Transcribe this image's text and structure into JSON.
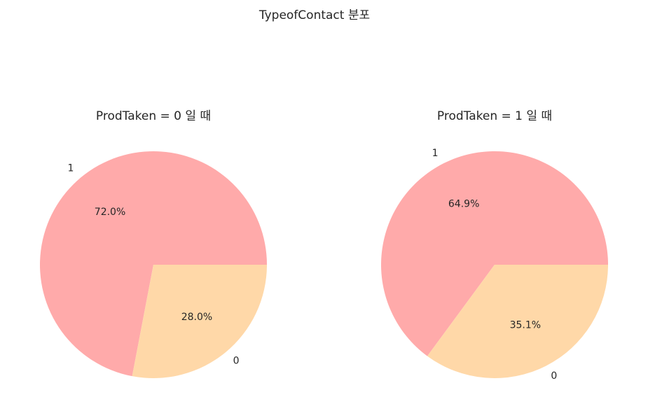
{
  "figure": {
    "suptitle": "TypeofContact 분포"
  },
  "chart_data": [
    {
      "type": "pie",
      "title": "ProdTaken = 0 일 때",
      "labels": [
        "1",
        "0"
      ],
      "values": [
        72.0,
        28.0
      ],
      "percent_labels": [
        "72.0%",
        "28.0%"
      ],
      "colors": [
        "#ffaaaa",
        "#ffd8a8"
      ],
      "start_angle_deg": 0,
      "direction": "counterclockwise",
      "legend": "none"
    },
    {
      "type": "pie",
      "title": "ProdTaken = 1 일 때",
      "labels": [
        "1",
        "0"
      ],
      "values": [
        64.9,
        35.1
      ],
      "percent_labels": [
        "64.9%",
        "35.1%"
      ],
      "colors": [
        "#ffaaaa",
        "#ffd8a8"
      ],
      "start_angle_deg": 0,
      "direction": "counterclockwise",
      "legend": "none"
    }
  ]
}
